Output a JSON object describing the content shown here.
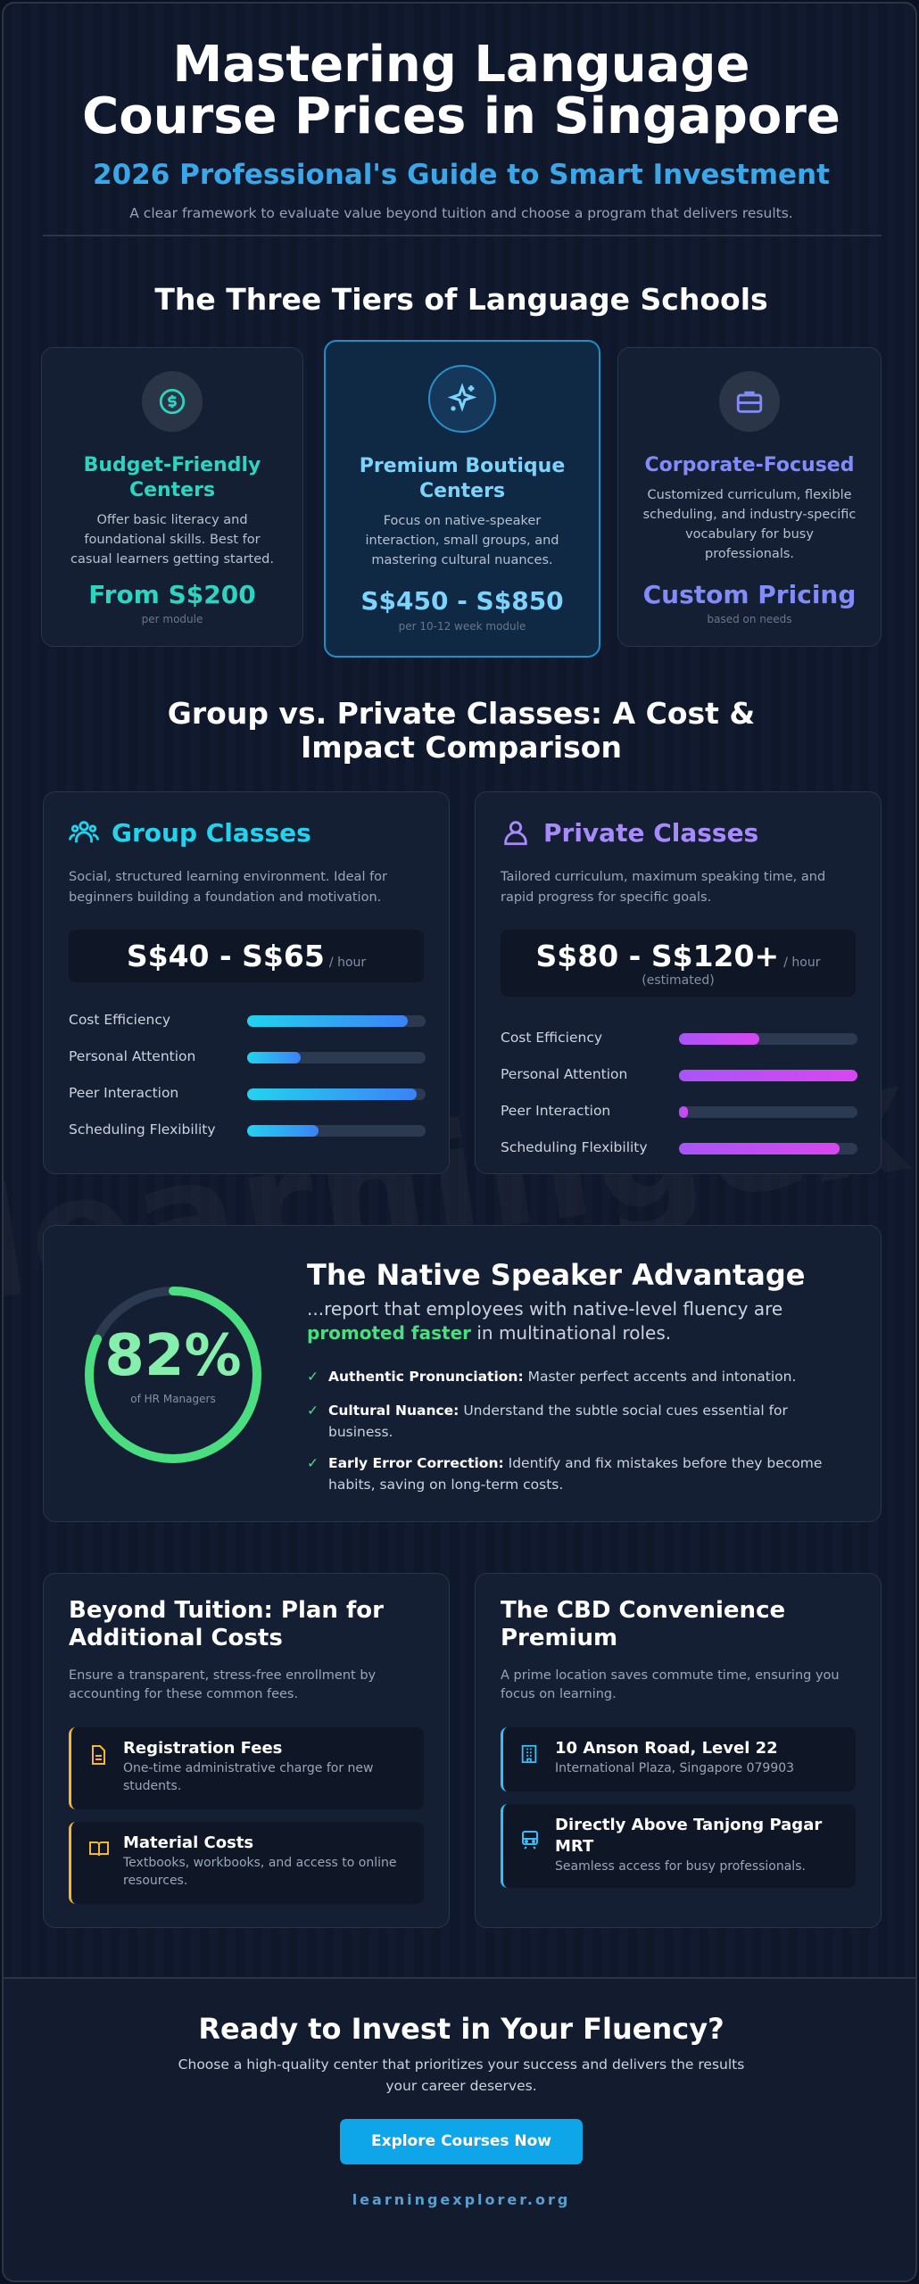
{
  "watermark": "learningexplorer",
  "header": {
    "title": "Mastering Language Course Prices in Singapore",
    "subtitle": "2026 Professional's Guide to Smart Investment",
    "description": "A clear framework to evaluate value beyond tuition and choose a program that delivers results."
  },
  "tiers": {
    "title": "The Three Tiers of Language Schools",
    "cards": [
      {
        "name": "Budget-Friendly Centers",
        "description": "Offer basic literacy and foundational skills. Best for casual learners getting started.",
        "price": "From S$200",
        "price_note": "per module"
      },
      {
        "name": "Premium Boutique Centers",
        "description": "Focus on native-speaker interaction, small groups, and mastering cultural nuances.",
        "price": "S$450 - S$850",
        "price_note": "per 10-12 week module"
      },
      {
        "name": "Corporate-Focused",
        "description": "Customized curriculum, flexible scheduling, and industry-specific vocabulary for busy professionals.",
        "price": "Custom Pricing",
        "price_note": "based on needs"
      }
    ]
  },
  "comparison": {
    "title": "Group vs. Private Classes: A Cost & Impact Comparison",
    "cards": [
      {
        "name": "Group Classes",
        "description": "Social, structured learning environment. Ideal for beginners building a foundation and motivation.",
        "price": "S$40 - S$65",
        "price_unit": "/ hour",
        "bars": [
          {
            "label": "Cost Efficiency",
            "value": 0.9
          },
          {
            "label": "Personal Attention",
            "value": 0.3
          },
          {
            "label": "Peer Interaction",
            "value": 0.95
          },
          {
            "label": "Scheduling Flexibility",
            "value": 0.4
          }
        ]
      },
      {
        "name": "Private Classes",
        "description": "Tailored curriculum, maximum speaking time, and rapid progress for specific goals.",
        "price": "S$80 - S$120+",
        "price_unit": "/ hour",
        "price_note": "(estimated)",
        "bars": [
          {
            "label": "Cost Efficiency",
            "value": 0.45
          },
          {
            "label": "Personal Attention",
            "value": 1
          },
          {
            "label": "Peer Interaction",
            "value": 0.05
          },
          {
            "label": "Scheduling Flexibility",
            "value": 0.9
          }
        ]
      }
    ]
  },
  "native": {
    "stat_value": 82,
    "stat_label": "82%",
    "stat_caption": "of HR Managers",
    "title": "The Native Speaker Advantage",
    "quote_before": "...report that employees with native-level fluency are",
    "quote_highlight": "promoted faster",
    "quote_after": "in multinational roles.",
    "points": [
      {
        "label": "Authentic Pronunciation:",
        "text": "Master perfect accents and intonation."
      },
      {
        "label": "Cultural Nuance:",
        "text": "Understand the subtle social cues essential for business."
      },
      {
        "label": "Early Error Correction:",
        "text": "Identify and fix mistakes before they become habits, saving on long-term costs."
      }
    ]
  },
  "extras": {
    "cards": [
      {
        "title": "Beyond Tuition: Plan for Additional Costs",
        "description": "Ensure a transparent, stress-free enrollment by accounting for these common fees.",
        "items": [
          {
            "title": "Registration Fees",
            "text": "One-time administrative charge for new students."
          },
          {
            "title": "Material Costs",
            "text": "Textbooks, workbooks, and access to online resources."
          }
        ]
      },
      {
        "title": "The CBD Convenience Premium",
        "description": "A prime location saves commute time, ensuring you focus on learning.",
        "items": [
          {
            "title": "10 Anson Road, Level 22",
            "text": "International Plaza, Singapore 079903"
          },
          {
            "title": "Directly Above Tanjong Pagar MRT",
            "text": "Seamless access for busy professionals."
          }
        ]
      }
    ]
  },
  "cta": {
    "title": "Ready to Invest in Your Fluency?",
    "description": "Choose a high-quality center that prioritizes your success and delivers the results your career deserves.",
    "button": "Explore Courses Now",
    "url": "learningexplorer.org"
  }
}
